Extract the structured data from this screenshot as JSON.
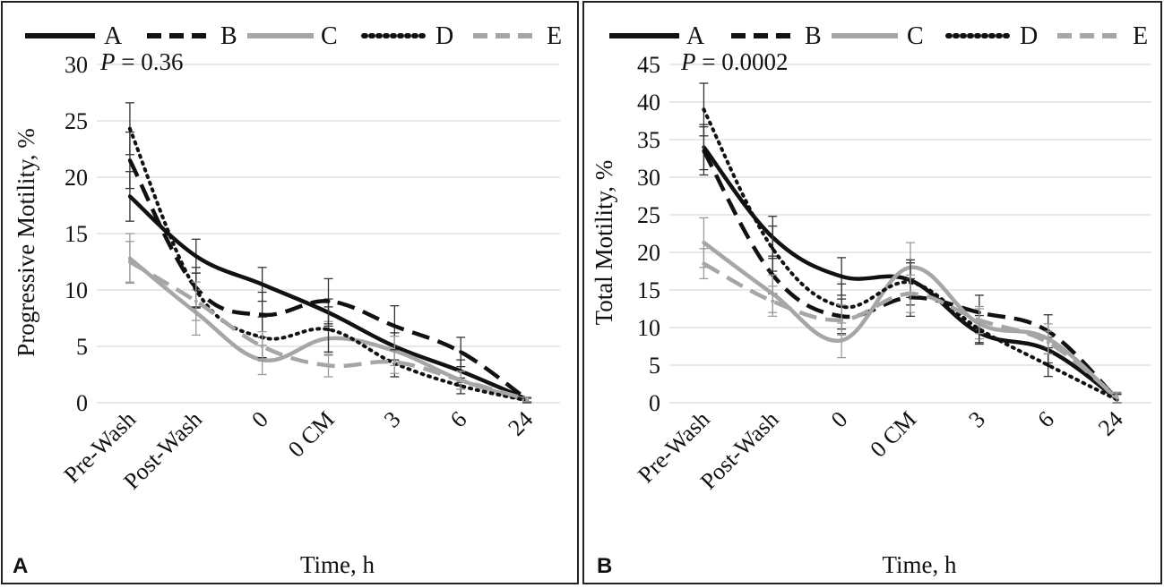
{
  "legend_entries": [
    "A",
    "B",
    "C",
    "D",
    "E"
  ],
  "series_styles": [
    {
      "name": "A",
      "color": "#111111",
      "dash": "solid"
    },
    {
      "name": "B",
      "color": "#111111",
      "dash": "dashed"
    },
    {
      "name": "C",
      "color": "#a6a6a6",
      "dash": "solid"
    },
    {
      "name": "D",
      "color": "#111111",
      "dash": "dotted"
    },
    {
      "name": "E",
      "color": "#a6a6a6",
      "dash": "dashed"
    }
  ],
  "chart_data": [
    {
      "type": "line",
      "panel_label": "A",
      "title": "",
      "p_value_label": "P",
      "p_value_text": " = 0.36",
      "xlabel": "Time, h",
      "ylabel": "Progressive Motility, %",
      "categories": [
        "Pre-Wash",
        "Post-Wash",
        "0",
        "0 CM",
        "3",
        "6",
        "24"
      ],
      "ylim": [
        0,
        30
      ],
      "yticks": [
        0,
        5,
        10,
        15,
        20,
        25,
        30
      ],
      "grid": true,
      "legend_position": "top",
      "series": [
        {
          "name": "A",
          "values": [
            18.3,
            13.0,
            10.5,
            8.0,
            5.0,
            2.8,
            0.3
          ],
          "errors": [
            2.2,
            1.5,
            1.5,
            1.2,
            1.2,
            1.0,
            0.2
          ]
        },
        {
          "name": "B",
          "values": [
            21.5,
            10.2,
            7.8,
            9.0,
            6.8,
            4.5,
            0.3
          ],
          "errors": [
            2.5,
            1.8,
            2.0,
            2.0,
            1.8,
            1.3,
            0.2
          ]
        },
        {
          "name": "C",
          "values": [
            12.8,
            8.0,
            3.8,
            5.7,
            4.6,
            2.0,
            0.2
          ],
          "errors": [
            2.2,
            2.0,
            1.3,
            1.5,
            1.3,
            0.8,
            0.2
          ]
        },
        {
          "name": "D",
          "values": [
            24.3,
            10.0,
            5.8,
            6.5,
            3.5,
            1.5,
            0.2
          ],
          "errors": [
            2.3,
            1.5,
            1.8,
            2.0,
            1.2,
            0.7,
            0.2
          ]
        },
        {
          "name": "E",
          "values": [
            12.5,
            9.0,
            5.0,
            3.3,
            3.6,
            2.0,
            0.3
          ],
          "errors": [
            1.8,
            1.7,
            1.3,
            1.0,
            1.0,
            0.8,
            0.2
          ]
        }
      ]
    },
    {
      "type": "line",
      "panel_label": "B",
      "title": "",
      "p_value_label": "P",
      "p_value_text": " = 0.0002",
      "xlabel": "Time, h",
      "ylabel": "Total Motility, %",
      "categories": [
        "Pre-Wash",
        "Post-Wash",
        "0",
        "0 CM",
        "3",
        "6",
        "24"
      ],
      "ylim": [
        0,
        45
      ],
      "yticks": [
        0,
        5,
        10,
        15,
        20,
        25,
        30,
        35,
        40,
        45
      ],
      "grid": true,
      "legend_position": "top",
      "series": [
        {
          "name": "A",
          "values": [
            34.0,
            22.0,
            16.8,
            16.3,
            9.3,
            7.0,
            0.5
          ],
          "errors": [
            3.0,
            2.8,
            2.5,
            2.3,
            1.5,
            1.7,
            0.8
          ]
        },
        {
          "name": "B",
          "values": [
            33.5,
            17.0,
            11.5,
            14.0,
            12.0,
            9.5,
            0.5
          ],
          "errors": [
            3.2,
            2.5,
            2.3,
            2.5,
            2.3,
            2.2,
            0.7
          ]
        },
        {
          "name": "C",
          "values": [
            21.3,
            14.5,
            8.3,
            18.0,
            10.5,
            8.5,
            0.5
          ],
          "errors": [
            3.3,
            2.5,
            2.3,
            3.3,
            2.0,
            2.0,
            0.7
          ]
        },
        {
          "name": "D",
          "values": [
            39.0,
            20.5,
            12.8,
            16.0,
            9.8,
            5.0,
            0.4
          ],
          "errors": [
            3.5,
            3.0,
            3.0,
            3.0,
            1.8,
            1.5,
            0.7
          ]
        },
        {
          "name": "E",
          "values": [
            18.5,
            13.5,
            11.0,
            14.5,
            11.0,
            8.0,
            0.7
          ],
          "errors": [
            2.0,
            2.0,
            2.0,
            2.5,
            1.8,
            1.5,
            0.7
          ]
        }
      ]
    }
  ]
}
